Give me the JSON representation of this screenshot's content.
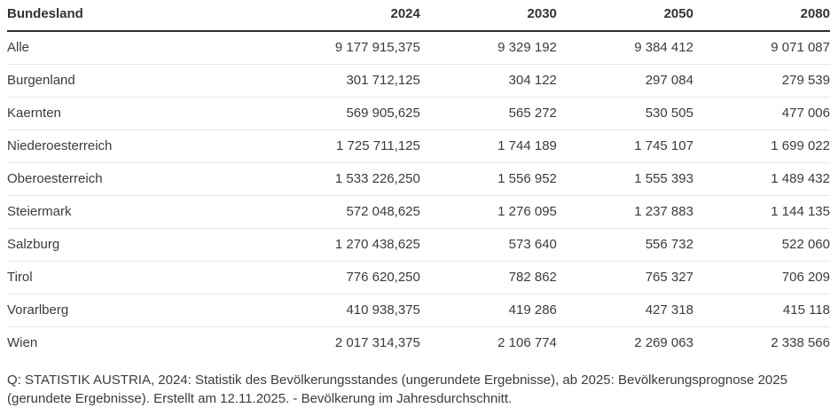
{
  "colors": {
    "background": "#ffffff",
    "text": "#3b3b3b",
    "header_text": "#333333",
    "header_rule": "#2e2e2e",
    "row_separator": "#e6e6e6"
  },
  "chart_data": {
    "type": "table",
    "title": "",
    "columns": [
      "Bundesland",
      "2024",
      "2030",
      "2050",
      "2080"
    ],
    "rows": [
      [
        "Alle",
        "9 177 915,375",
        "9 329 192",
        "9 384 412",
        "9 071 087"
      ],
      [
        "Burgenland",
        "301 712,125",
        "304 122",
        "297 084",
        "279 539"
      ],
      [
        "Kaernten",
        "569 905,625",
        "565 272",
        "530 505",
        "477 006"
      ],
      [
        "Niederoesterreich",
        "1 725 711,125",
        "1 744 189",
        "1 745 107",
        "1 699 022"
      ],
      [
        "Oberoesterreich",
        "1 533 226,250",
        "1 556 952",
        "1 555 393",
        "1 489 432"
      ],
      [
        "Steiermark",
        "572 048,625",
        "1 276 095",
        "1 237 883",
        "1 144 135"
      ],
      [
        "Salzburg",
        "1 270 438,625",
        "573 640",
        "556 732",
        "522 060"
      ],
      [
        "Tirol",
        "776 620,250",
        "782 862",
        "765 327",
        "706 209"
      ],
      [
        "Vorarlberg",
        "410 938,375",
        "419 286",
        "427 318",
        "415 118"
      ],
      [
        "Wien",
        "2 017 314,375",
        "2 106 774",
        "2 269 063",
        "2 338 566"
      ]
    ],
    "footnote": "Q: STATISTIK AUSTRIA, 2024: Statistik des Bevölkerungsstandes (ungerundete Ergebnisse), ab 2025: Bevölkerungsprognose 2025 (gerundete Ergebnisse). Erstellt am 12.11.2025. - Bevölkerung im Jahresdurchschnitt.",
    "layout": {
      "value_alignment": "right",
      "grid": "horizontal-only",
      "legend": "none"
    }
  }
}
